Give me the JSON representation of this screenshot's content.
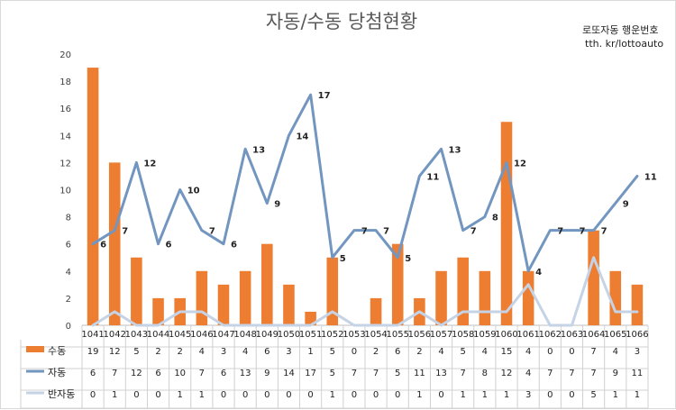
{
  "header": {
    "title": "자동/수동 당첨현황",
    "brand_line1": "로또자동 행운번호",
    "brand_line2": "tth. kr/lottoauto"
  },
  "chart_data": {
    "type": "bar",
    "title": "자동/수동 당첨현황",
    "categories": [
      "1041",
      "1042",
      "1043",
      "1044",
      "1045",
      "1046",
      "1047",
      "1048",
      "1049",
      "1050",
      "1051",
      "1052",
      "1053",
      "1054",
      "1055",
      "1056",
      "1057",
      "1058",
      "1059",
      "1060",
      "1061",
      "1062",
      "1063",
      "1064",
      "1065",
      "1066"
    ],
    "ylim": [
      0,
      20
    ],
    "yticks": [
      0,
      2,
      4,
      6,
      8,
      10,
      12,
      14,
      16,
      18,
      20
    ],
    "grid": false,
    "legend": "bottom-table",
    "series": [
      {
        "name": "수동",
        "kind": "bar",
        "color": "#ed7d31",
        "values": [
          19,
          12,
          5,
          2,
          2,
          4,
          3,
          4,
          6,
          3,
          1,
          5,
          0,
          2,
          6,
          2,
          4,
          5,
          4,
          15,
          4,
          0,
          0,
          7,
          4,
          3
        ]
      },
      {
        "name": "자동",
        "kind": "line",
        "color": "#7296bf",
        "values": [
          6,
          7,
          12,
          6,
          10,
          7,
          6,
          13,
          9,
          14,
          17,
          5,
          7,
          7,
          5,
          11,
          13,
          7,
          8,
          12,
          4,
          7,
          7,
          7,
          9,
          11
        ]
      },
      {
        "name": "반자동",
        "kind": "line",
        "color": "#c5d3e6",
        "values": [
          0,
          1,
          0,
          0,
          1,
          1,
          0,
          0,
          0,
          0,
          0,
          1,
          0,
          0,
          0,
          1,
          0,
          1,
          1,
          1,
          3,
          0,
          0,
          5,
          1,
          1
        ]
      }
    ],
    "data_labels": {
      "자동": [
        6,
        7,
        12,
        6,
        10,
        7,
        6,
        13,
        9,
        14,
        17,
        5,
        7,
        7,
        5,
        11,
        13,
        7,
        8,
        12,
        4,
        7,
        7,
        7,
        9,
        11
      ]
    }
  }
}
